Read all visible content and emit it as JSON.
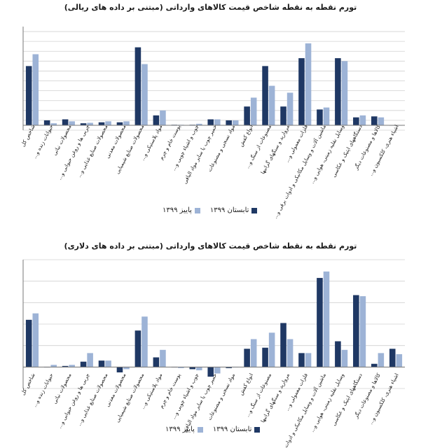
{
  "colors": {
    "summer": "#1f3864",
    "autumn": "#9db3d6",
    "grid": "#d0d0d0",
    "axis": "#777777"
  },
  "legend": {
    "summer": "تابستان ۱۳۹۹",
    "autumn": "پاییز ۱۳۹۹"
  },
  "chart_data": [
    {
      "type": "bar",
      "title": "تورم نقطه به نقطه شاخص قیمت کالاهای وارداتی (مبتنی بر داده های ریالی)",
      "categories": [
        "شاخص کل",
        "حیوانات زنده و...",
        "محصولات نباتی",
        "چربی ها و روغن حیوانی و...",
        "محصولات صنایع غذایی و...",
        "محصولات معدنی",
        "محصولات صنایع شیمیایی",
        "مواد پلاستیکی و...",
        "پوست خام و چرم",
        "چوب و اشیاء چوبی و...",
        "خمیر چوب یا سایر مواد الیافی",
        "مواد نسجی و مصنوعات",
        "انواع کفش",
        "مصنوعات از سنگ و...",
        "مروارید و سنگهای گرانبها",
        "فلزات معمولی و...",
        "ماشین آلات و وسایل مکانیکی و ادوات برقی و...",
        "وسایل نقلیه زمینی، هوایی و...",
        "دستگاههای اپتیک و عکاسی",
        "کالاها و مصنوعات دیگر",
        "اشیاء هنری، کلکسیون و..."
      ],
      "ylim": [
        -5,
        100
      ],
      "series": [
        {
          "name": "تابستان ۱۳۹۹",
          "values": [
            60,
            5,
            6,
            2,
            3,
            3,
            79,
            10,
            0.5,
            0.5,
            6,
            5,
            19,
            60,
            19,
            68,
            16,
            68,
            8,
            9,
            0
          ]
        },
        {
          "name": "پاییز ۱۳۹۹",
          "values": [
            72,
            2,
            4,
            2.5,
            4,
            4,
            62,
            15,
            0.5,
            1.5,
            6,
            5,
            28,
            40,
            33,
            83,
            18,
            65,
            10,
            8,
            0
          ]
        }
      ]
    },
    {
      "type": "bar",
      "title": "تورم نقطه به نقطه شاخص قیمت کالاهای وارداتی (مبتنی بر داده های دلاری)",
      "categories": [
        "شاخص کل",
        "حیوانات زنده و...",
        "محصولات نباتی",
        "چربی ها و روغن حیوانی و...",
        "محصولات صنایع غذایی و...",
        "محصولات معدنی",
        "محصولات صنایع شیمیایی",
        "مواد پلاستیکی و...",
        "پوست خام و چرم",
        "چوب و اشیاء چوبی و...",
        "خمیر چوب یا سایر مواد الیافی",
        "مواد نسجی و مصنوعات",
        "انواع کفش",
        "مصنوعات از سنگ و...",
        "مروارید و سنگهای گرانبها",
        "فلزات معمولی و...",
        "ماشین آلات و وسایل مکانیکی و ادوات برقی و...",
        "وسایل نقلیه زمینی، هوایی و...",
        "دستگاههای اپتیک و عکاسی",
        "کالاها و مصنوعات دیگر",
        "اشیاء هنری، کلکسیون و..."
      ],
      "ylim": [
        -10,
        50
      ],
      "series": [
        {
          "name": "تابستان ۱۳۹۹",
          "values": [
            22,
            0,
            0.5,
            2.5,
            3,
            -2.5,
            17,
            4.5,
            0,
            -1,
            -4.5,
            -0.5,
            8.5,
            9,
            20.5,
            6.5,
            41.5,
            12,
            33.5,
            1.5,
            8.5
          ]
        },
        {
          "name": "پاییز ۱۳۹۹",
          "values": [
            25,
            1,
            1,
            6.5,
            3,
            -1,
            23.5,
            8,
            -0.5,
            -1.5,
            -3,
            0,
            13,
            16,
            13,
            6.5,
            44.5,
            8,
            33,
            6.5,
            6
          ]
        }
      ]
    }
  ]
}
